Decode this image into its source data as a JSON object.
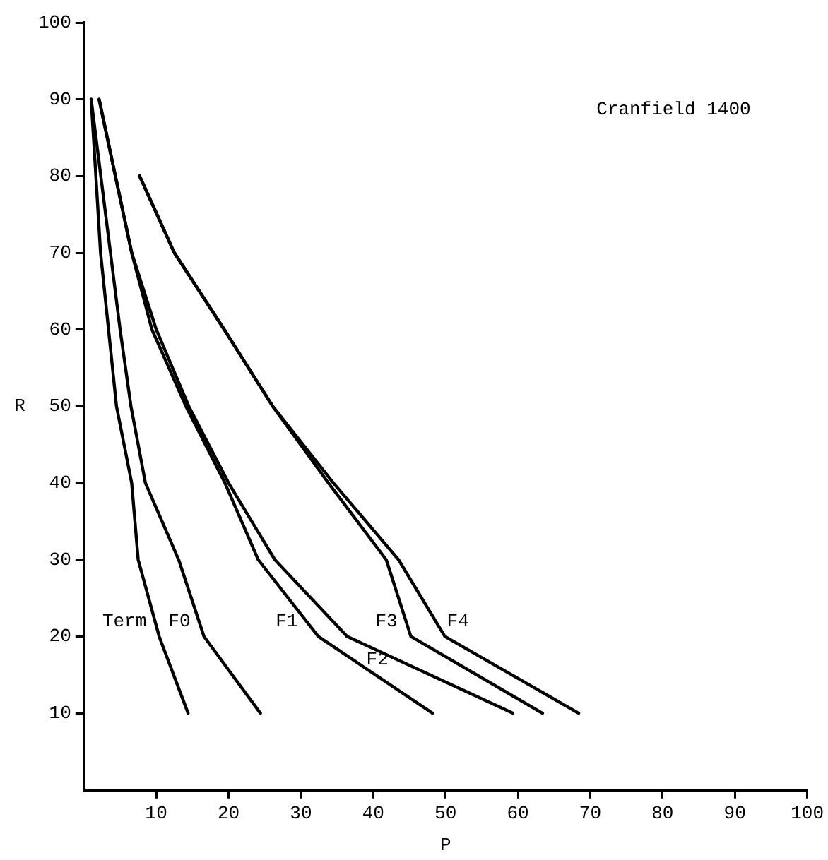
{
  "chart_data": {
    "type": "line",
    "xlabel": "P",
    "ylabel": "R",
    "annotations": [
      "Cranfield 1400"
    ],
    "xlim": [
      0,
      100
    ],
    "xticks": [
      10,
      20,
      30,
      40,
      50,
      60,
      70,
      80,
      90,
      100
    ],
    "ylim": [
      0,
      100
    ],
    "yticks": [
      10,
      20,
      30,
      40,
      50,
      60,
      70,
      80,
      90,
      100
    ],
    "grid": false,
    "legend": false,
    "marker": "none",
    "line_style": "solid",
    "series": [
      {
        "name": "Term",
        "color": "#000000",
        "x": [
          1.0,
          2.3,
          4.5,
          6.6,
          7.5,
          10.4,
          14.4
        ],
        "values": [
          90,
          70,
          50,
          40,
          30,
          20,
          10
        ]
      },
      {
        "name": "F0",
        "color": "#000000",
        "x": [
          1.0,
          5.0,
          6.5,
          8.5,
          13.1,
          16.6,
          24.4
        ],
        "values": [
          90,
          60,
          50,
          40,
          30,
          20,
          10
        ]
      },
      {
        "name": "F1",
        "color": "#000000",
        "x": [
          2.1,
          6.6,
          9.4,
          14.1,
          19.5,
          24.1,
          32.4,
          48.2
        ],
        "values": [
          90,
          70,
          60,
          50,
          40,
          30,
          20,
          10
        ]
      },
      {
        "name": "F2",
        "color": "#000000",
        "x": [
          2.1,
          6.6,
          10.0,
          14.5,
          20.0,
          26.4,
          36.4,
          59.3
        ],
        "values": [
          90,
          70,
          60,
          50,
          40,
          30,
          20,
          10
        ]
      },
      {
        "name": "F3",
        "color": "#000000",
        "x": [
          7.7,
          12.5,
          19.4,
          26.1,
          33.8,
          41.8,
          45.2,
          63.4
        ],
        "values": [
          80,
          70,
          60,
          50,
          40,
          30,
          20,
          10
        ]
      },
      {
        "name": "F4",
        "color": "#000000",
        "x": [
          7.7,
          12.5,
          19.4,
          26.1,
          34.5,
          43.5,
          49.9,
          68.4
        ],
        "values": [
          80,
          70,
          60,
          50,
          40,
          30,
          20,
          10
        ]
      }
    ]
  }
}
